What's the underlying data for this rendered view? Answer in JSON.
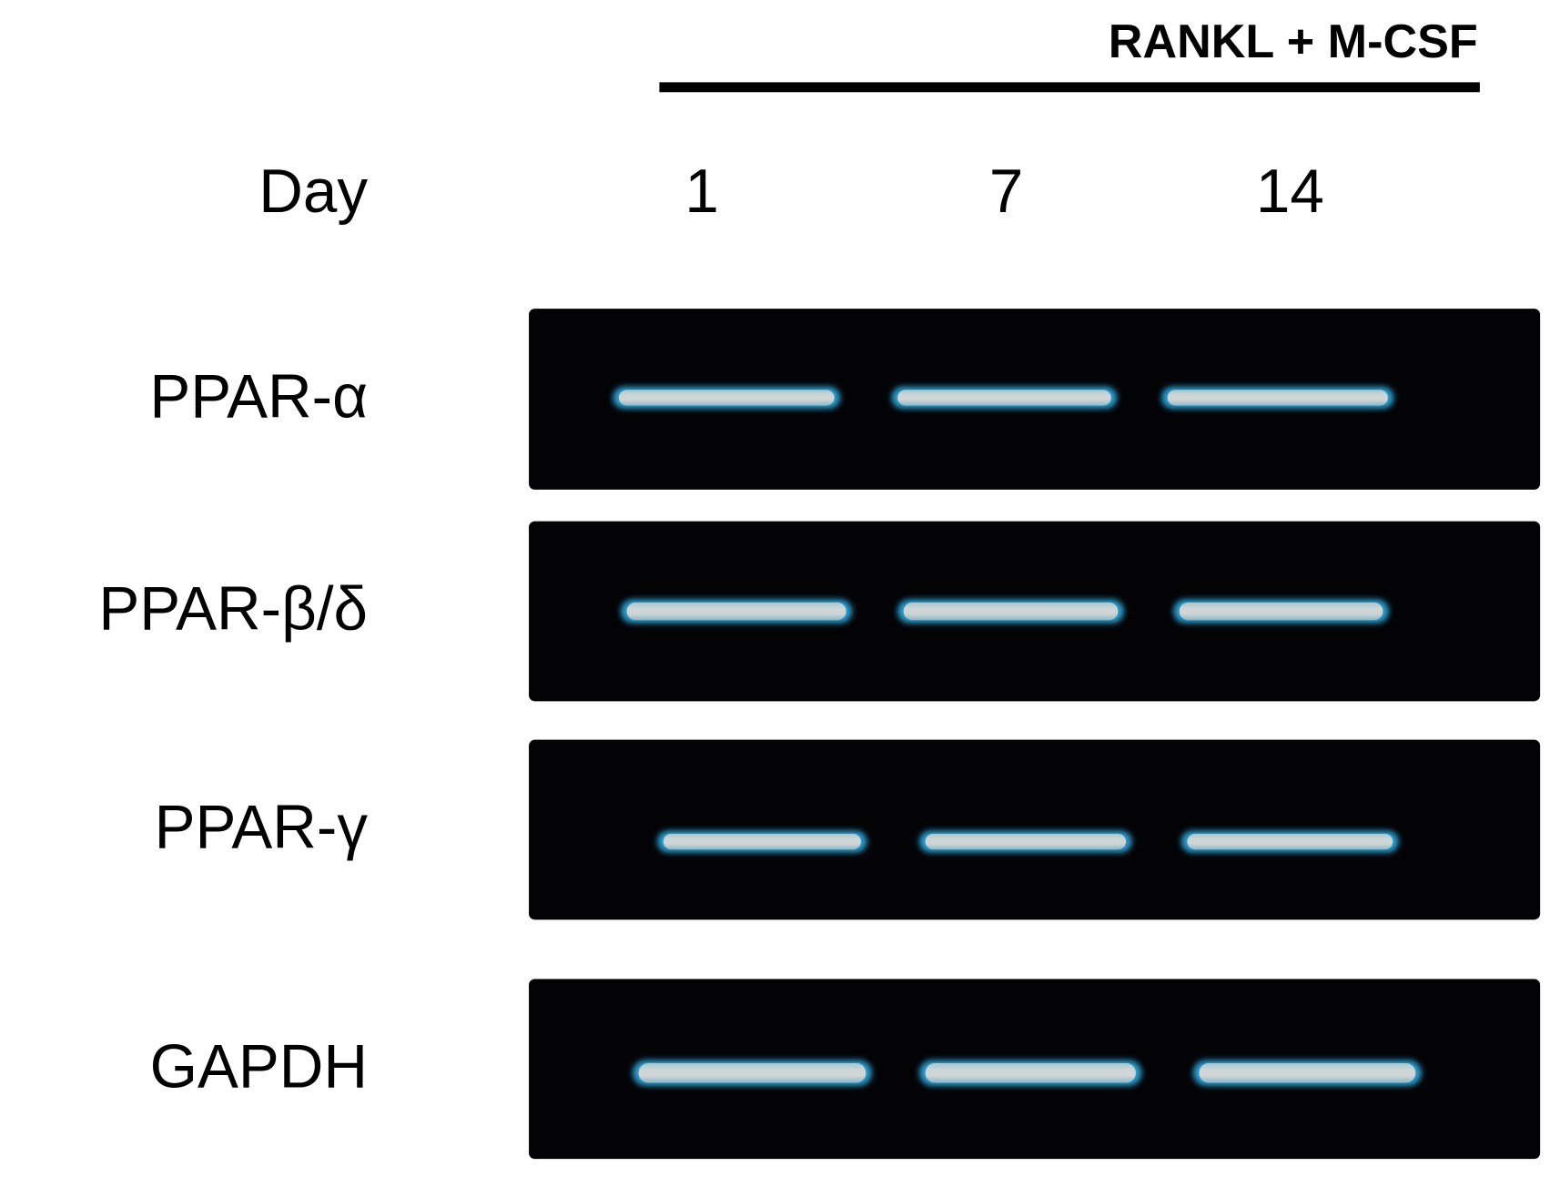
{
  "header": {
    "treatment": "RANKL + M-CSF",
    "day_label": "Day",
    "days": [
      "1",
      "7",
      "14"
    ]
  },
  "rows": [
    {
      "label": "PPAR-α"
    },
    {
      "label": "PPAR-β/δ"
    },
    {
      "label": "PPAR-γ"
    },
    {
      "label": "GAPDH"
    }
  ]
}
